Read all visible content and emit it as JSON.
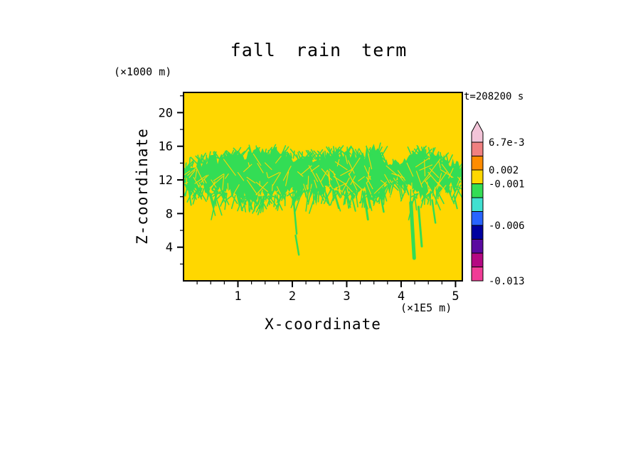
{
  "chart_data": {
    "type": "heatmap",
    "title": "fall rain term",
    "timestamp_label": "t=208200 s",
    "xlabel": "X-coordinate",
    "ylabel": "Z-coordinate",
    "x_unit_label": "(×1E5 m)",
    "y_unit_label": "(×1000 m)",
    "xlim": [
      0,
      5.125
    ],
    "ylim": [
      0,
      22.4
    ],
    "x_ticks": [
      1,
      2,
      3,
      4,
      5
    ],
    "y_ticks": [
      4,
      8,
      12,
      16,
      20
    ],
    "x_minor_step": 0.25,
    "y_minor_step": 2,
    "axis_color": "#000000",
    "field": {
      "background_color": "#ffd700",
      "band_color": "#33dd55",
      "description": "ragged streaky green band of fall-rain-term values (bin just below -0.001) between z≈10 and z≈15.5 (x1000 m) across the full x range, over a yellow background (bin -0.001 to 0.002); thin green trailing streaks descend to lower altitudes near x≈2.0, 3.3, 4.2, 4.3, 4.6 (x1E5 m)",
      "band_top_pts": [
        [
          0,
          13.2
        ],
        [
          0.25,
          14.1
        ],
        [
          0.6,
          14.5
        ],
        [
          1.0,
          14.9
        ],
        [
          1.4,
          15.3
        ],
        [
          1.8,
          15.1
        ],
        [
          2.2,
          14.5
        ],
        [
          2.6,
          14.8
        ],
        [
          3.0,
          15.4
        ],
        [
          3.3,
          14.8
        ],
        [
          3.55,
          15.5
        ],
        [
          3.8,
          13.9
        ],
        [
          4.0,
          13.7
        ],
        [
          4.25,
          15.2
        ],
        [
          4.6,
          14.8
        ],
        [
          4.9,
          14.2
        ],
        [
          5.13,
          13.6
        ]
      ],
      "band_bottom_pts": [
        [
          0,
          11.3
        ],
        [
          0.25,
          10.9
        ],
        [
          0.6,
          10.5
        ],
        [
          1.0,
          9.9
        ],
        [
          1.4,
          9.8
        ],
        [
          1.8,
          10.1
        ],
        [
          2.2,
          10.6
        ],
        [
          2.6,
          10.9
        ],
        [
          3.0,
          10.2
        ],
        [
          3.3,
          10.5
        ],
        [
          3.55,
          10.0
        ],
        [
          3.8,
          11.4
        ],
        [
          4.0,
          11.9
        ],
        [
          4.25,
          10.1
        ],
        [
          4.6,
          10.5
        ],
        [
          4.9,
          11.0
        ],
        [
          5.13,
          11.2
        ]
      ],
      "hanging_streaks": [
        {
          "x": 0.08,
          "z1": 11.5,
          "z2": 9.0,
          "w": 2
        },
        {
          "x": 0.5,
          "z1": 10.4,
          "z2": 8.9,
          "w": 2
        },
        {
          "x": 1.2,
          "z1": 9.9,
          "z2": 8.5,
          "w": 2
        },
        {
          "x": 2.02,
          "z1": 9.8,
          "z2": 5.6,
          "w": 2.5
        },
        {
          "x": 2.06,
          "z1": 5.4,
          "z2": 3.1,
          "w": 2.5
        },
        {
          "x": 2.62,
          "z1": 10.4,
          "z2": 9.0,
          "w": 2
        },
        {
          "x": 3.1,
          "z1": 9.9,
          "z2": 8.3,
          "w": 2
        },
        {
          "x": 3.33,
          "z1": 9.9,
          "z2": 7.3,
          "w": 3
        },
        {
          "x": 3.62,
          "z1": 10.3,
          "z2": 8.2,
          "w": 2.5
        },
        {
          "x": 4.18,
          "z1": 9.3,
          "z2": 2.7,
          "w": 5
        },
        {
          "x": 4.32,
          "z1": 8.8,
          "z2": 4.1,
          "w": 3
        },
        {
          "x": 4.57,
          "z1": 9.6,
          "z2": 6.9,
          "w": 2.5
        },
        {
          "x": 4.97,
          "z1": 10.2,
          "z2": 8.6,
          "w": 2
        }
      ]
    },
    "colorbar": {
      "arrow_color": "#f2c4d8",
      "segments": [
        "#f08080",
        "#ff8c00",
        "#ffd700",
        "#33dd55",
        "#40e0d0",
        "#2864ff",
        "#0000a0",
        "#5a0aa0",
        "#b40882",
        "#f03c96"
      ],
      "labels": [
        {
          "text": "6.7e-3",
          "seg_boundary": 0
        },
        {
          "text": "0.002",
          "seg_boundary": 2
        },
        {
          "text": "-0.001",
          "seg_boundary": 3
        },
        {
          "text": "-0.006",
          "seg_boundary": 6
        },
        {
          "text": "-0.013",
          "seg_boundary": 10
        }
      ]
    }
  }
}
